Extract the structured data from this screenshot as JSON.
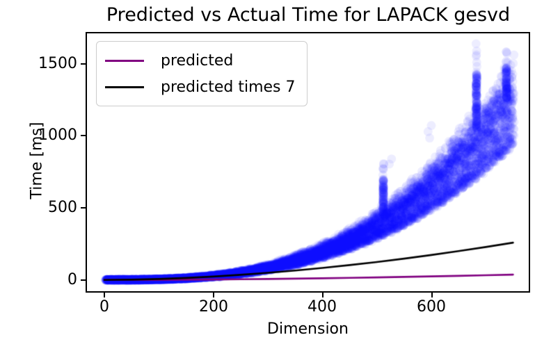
{
  "chart_data": {
    "type": "scatter",
    "title": "Predicted vs Actual Time for LAPACK gesvd",
    "xlabel": "Dimension",
    "ylabel": "Time [ms]",
    "xlim": [
      -31.9,
      778.8
    ],
    "ylim": [
      -78.1,
      1711.6
    ],
    "x_ticks": [
      0,
      200,
      400,
      600
    ],
    "y_ticks": [
      0,
      500,
      1000,
      1500
    ],
    "x_tick_labels": [
      "0",
      "200",
      "400",
      "600"
    ],
    "y_tick_labels": [
      "0",
      "500",
      "1000",
      "1500"
    ],
    "grid": false,
    "legend_position": "upper-left",
    "legend": [
      {
        "label": "predicted",
        "color": "#800080"
      },
      {
        "label": "predicted times 7",
        "color": "#000000"
      }
    ],
    "lines": [
      {
        "name": "predicted",
        "color": "#800080",
        "width": 2.6,
        "x": [
          0,
          50,
          100,
          150,
          200,
          250,
          300,
          350,
          400,
          450,
          500,
          550,
          600,
          650,
          700,
          750
        ],
        "y": [
          0,
          0.3,
          1.0,
          2.0,
          3.4,
          5.1,
          7.1,
          9.4,
          11.9,
          14.8,
          17.8,
          21.2,
          24.8,
          28.6,
          32.7,
          37.0
        ]
      },
      {
        "name": "predicted times 7",
        "color": "#000000",
        "width": 2.6,
        "x": [
          0,
          50,
          100,
          150,
          200,
          250,
          300,
          350,
          400,
          450,
          500,
          550,
          600,
          650,
          700,
          750
        ],
        "y": [
          0,
          2.1,
          6.9,
          14.3,
          24.0,
          35.9,
          49.8,
          65.7,
          83.6,
          103.3,
          124.8,
          148.2,
          173.3,
          200.2,
          228.8,
          259.0
        ]
      }
    ],
    "scatter": {
      "name": "actual timings",
      "color": "#0000ff",
      "alpha": 0.07,
      "radius": 6.5,
      "dim_start": 4,
      "dim_end": 750,
      "dim_step": 2,
      "coeff": 940,
      "exponent": 2.9,
      "ref_dim": 750,
      "noise_ms": 7,
      "quantize_dims": 12,
      "bands": [
        {
          "name": "main-dense-band",
          "points_per_dim": 12,
          "lo": 1.0,
          "hi": 1.42,
          "bias": 1.7,
          "quantized": true
        },
        {
          "name": "secondary-band",
          "points_per_dim": 5,
          "lo": 1.3,
          "hi": 1.55,
          "bias": 1.0,
          "quantized": true
        },
        {
          "name": "diffuse-cloud",
          "points_per_dim": 4,
          "lo": 1.15,
          "hi": 1.68,
          "bias": 1.0,
          "quantized": false
        }
      ],
      "spikes": [
        {
          "dim": 512,
          "dense_lo": 455,
          "dense_hi": 700,
          "dense_n": 90,
          "light_hi": 820,
          "light_n": 6
        },
        {
          "dim": 683,
          "dense_lo": 1050,
          "dense_hi": 1430,
          "dense_n": 130,
          "light_hi": 1640,
          "light_n": 7
        },
        {
          "dim": 738,
          "dense_lo": 1250,
          "dense_hi": 1480,
          "dense_n": 80,
          "light_hi": 1590,
          "light_n": 5
        }
      ],
      "outliers": [
        [
          594,
          1030
        ],
        [
          600,
          1072
        ],
        [
          597,
          985
        ],
        [
          523,
          805
        ],
        [
          527,
          840
        ]
      ]
    },
    "seed": 42,
    "background": "#ffffff"
  }
}
